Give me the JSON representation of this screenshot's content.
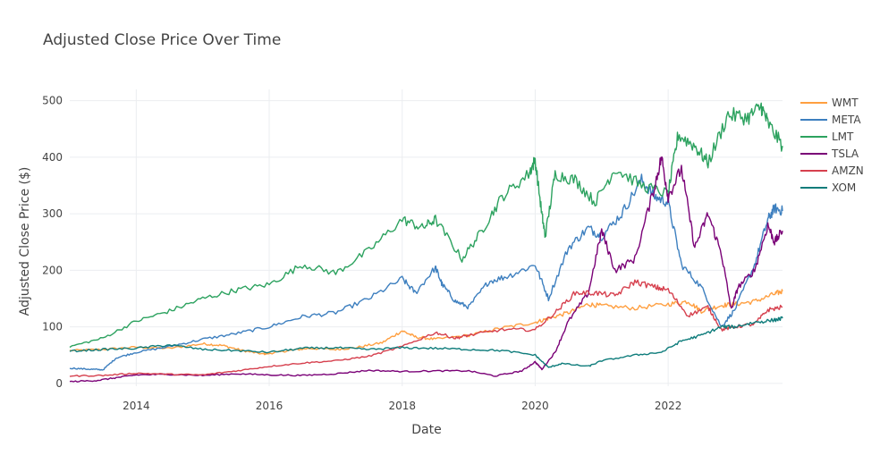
{
  "chart_data": {
    "type": "line",
    "title": "Adjusted Close Price Over Time",
    "xlabel": "Date",
    "ylabel": "Adjusted Close Price ($)",
    "xlim": [
      2013.0,
      2023.72
    ],
    "ylim": [
      -5,
      520
    ],
    "x_ticks": [
      2014,
      2016,
      2018,
      2020,
      2022
    ],
    "x_tick_labels": [
      "2014",
      "2016",
      "2018",
      "2020",
      "2022"
    ],
    "y_ticks": [
      0,
      100,
      200,
      300,
      400,
      500
    ],
    "y_tick_labels": [
      "0",
      "100",
      "200",
      "300",
      "400",
      "500"
    ],
    "grid": true,
    "legend_position": "top-right",
    "series": [
      {
        "name": "WMT",
        "color": "#ff9f40",
        "points": [
          [
            2013.0,
            58
          ],
          [
            2013.5,
            60
          ],
          [
            2014.0,
            64
          ],
          [
            2014.5,
            62
          ],
          [
            2015.0,
            70
          ],
          [
            2015.3,
            67
          ],
          [
            2015.6,
            58
          ],
          [
            2015.9,
            52
          ],
          [
            2016.0,
            53
          ],
          [
            2016.3,
            58
          ],
          [
            2016.6,
            62
          ],
          [
            2017.0,
            60
          ],
          [
            2017.3,
            63
          ],
          [
            2017.7,
            72
          ],
          [
            2018.0,
            93
          ],
          [
            2018.2,
            82
          ],
          [
            2018.5,
            78
          ],
          [
            2019.0,
            85
          ],
          [
            2019.5,
            98
          ],
          [
            2020.0,
            108
          ],
          [
            2020.2,
            115
          ],
          [
            2020.5,
            125
          ],
          [
            2020.8,
            140
          ],
          [
            2021.0,
            137
          ],
          [
            2021.5,
            133
          ],
          [
            2022.0,
            140
          ],
          [
            2022.3,
            145
          ],
          [
            2022.5,
            128
          ],
          [
            2022.8,
            138
          ],
          [
            2023.0,
            140
          ],
          [
            2023.3,
            145
          ],
          [
            2023.6,
            158
          ],
          [
            2023.72,
            163
          ]
        ]
      },
      {
        "name": "META",
        "color": "#3d7fbf",
        "points": [
          [
            2013.0,
            27
          ],
          [
            2013.3,
            25
          ],
          [
            2013.5,
            24
          ],
          [
            2013.7,
            45
          ],
          [
            2014.0,
            55
          ],
          [
            2014.5,
            65
          ],
          [
            2015.0,
            78
          ],
          [
            2015.5,
            88
          ],
          [
            2016.0,
            100
          ],
          [
            2016.5,
            118
          ],
          [
            2017.0,
            125
          ],
          [
            2017.5,
            150
          ],
          [
            2018.0,
            185
          ],
          [
            2018.2,
            160
          ],
          [
            2018.5,
            205
          ],
          [
            2018.6,
            175
          ],
          [
            2018.8,
            145
          ],
          [
            2019.0,
            135
          ],
          [
            2019.3,
            180
          ],
          [
            2019.6,
            190
          ],
          [
            2020.0,
            210
          ],
          [
            2020.2,
            150
          ],
          [
            2020.5,
            240
          ],
          [
            2020.8,
            275
          ],
          [
            2021.0,
            260
          ],
          [
            2021.3,
            300
          ],
          [
            2021.6,
            360
          ],
          [
            2021.8,
            330
          ],
          [
            2022.0,
            320
          ],
          [
            2022.2,
            210
          ],
          [
            2022.5,
            170
          ],
          [
            2022.8,
            100
          ],
          [
            2023.0,
            130
          ],
          [
            2023.3,
            210
          ],
          [
            2023.5,
            290
          ],
          [
            2023.6,
            310
          ],
          [
            2023.72,
            305
          ]
        ]
      },
      {
        "name": "LMT",
        "color": "#2ca25f",
        "points": [
          [
            2013.0,
            65
          ],
          [
            2013.5,
            80
          ],
          [
            2014.0,
            110
          ],
          [
            2014.5,
            128
          ],
          [
            2015.0,
            150
          ],
          [
            2015.5,
            165
          ],
          [
            2016.0,
            175
          ],
          [
            2016.5,
            210
          ],
          [
            2017.0,
            195
          ],
          [
            2017.5,
            235
          ],
          [
            2018.0,
            290
          ],
          [
            2018.3,
            275
          ],
          [
            2018.5,
            290
          ],
          [
            2018.9,
            220
          ],
          [
            2019.2,
            270
          ],
          [
            2019.5,
            330
          ],
          [
            2019.9,
            370
          ],
          [
            2020.0,
            395
          ],
          [
            2020.1,
            300
          ],
          [
            2020.15,
            260
          ],
          [
            2020.3,
            370
          ],
          [
            2020.6,
            360
          ],
          [
            2020.9,
            320
          ],
          [
            2021.2,
            380
          ],
          [
            2021.6,
            350
          ],
          [
            2022.0,
            335
          ],
          [
            2022.15,
            440
          ],
          [
            2022.4,
            420
          ],
          [
            2022.6,
            390
          ],
          [
            2022.9,
            475
          ],
          [
            2023.2,
            470
          ],
          [
            2023.4,
            490
          ],
          [
            2023.5,
            460
          ],
          [
            2023.72,
            420
          ]
        ]
      },
      {
        "name": "TSLA",
        "color": "#7a0177",
        "points": [
          [
            2013.0,
            3
          ],
          [
            2013.4,
            5
          ],
          [
            2013.7,
            10
          ],
          [
            2014.0,
            15
          ],
          [
            2014.5,
            16
          ],
          [
            2015.0,
            14
          ],
          [
            2015.5,
            17
          ],
          [
            2016.0,
            15
          ],
          [
            2016.5,
            14
          ],
          [
            2017.0,
            17
          ],
          [
            2017.5,
            23
          ],
          [
            2018.0,
            21
          ],
          [
            2018.5,
            22
          ],
          [
            2019.0,
            22
          ],
          [
            2019.4,
            13
          ],
          [
            2019.8,
            22
          ],
          [
            2020.0,
            38
          ],
          [
            2020.1,
            25
          ],
          [
            2020.3,
            55
          ],
          [
            2020.5,
            110
          ],
          [
            2020.8,
            160
          ],
          [
            2021.0,
            270
          ],
          [
            2021.2,
            200
          ],
          [
            2021.5,
            220
          ],
          [
            2021.8,
            350
          ],
          [
            2021.9,
            400
          ],
          [
            2022.0,
            330
          ],
          [
            2022.2,
            380
          ],
          [
            2022.4,
            240
          ],
          [
            2022.6,
            300
          ],
          [
            2022.8,
            230
          ],
          [
            2022.95,
            130
          ],
          [
            2023.05,
            170
          ],
          [
            2023.3,
            200
          ],
          [
            2023.5,
            280
          ],
          [
            2023.6,
            250
          ],
          [
            2023.72,
            270
          ]
        ]
      },
      {
        "name": "AMZN",
        "color": "#d6404e",
        "points": [
          [
            2013.0,
            13
          ],
          [
            2013.5,
            14
          ],
          [
            2014.0,
            18
          ],
          [
            2014.5,
            16
          ],
          [
            2015.0,
            15
          ],
          [
            2015.5,
            22
          ],
          [
            2016.0,
            30
          ],
          [
            2016.5,
            36
          ],
          [
            2017.0,
            40
          ],
          [
            2017.5,
            48
          ],
          [
            2018.0,
            65
          ],
          [
            2018.5,
            90
          ],
          [
            2018.8,
            80
          ],
          [
            2019.0,
            85
          ],
          [
            2019.5,
            95
          ],
          [
            2020.0,
            95
          ],
          [
            2020.3,
            125
          ],
          [
            2020.6,
            160
          ],
          [
            2020.9,
            160
          ],
          [
            2021.2,
            155
          ],
          [
            2021.5,
            180
          ],
          [
            2021.8,
            170
          ],
          [
            2022.0,
            165
          ],
          [
            2022.3,
            120
          ],
          [
            2022.6,
            135
          ],
          [
            2022.8,
            95
          ],
          [
            2023.0,
            100
          ],
          [
            2023.3,
            105
          ],
          [
            2023.5,
            130
          ],
          [
            2023.72,
            135
          ]
        ]
      },
      {
        "name": "XOM",
        "color": "#0e7c7b",
        "points": [
          [
            2013.0,
            57
          ],
          [
            2013.5,
            60
          ],
          [
            2014.0,
            62
          ],
          [
            2014.5,
            68
          ],
          [
            2015.0,
            60
          ],
          [
            2015.5,
            58
          ],
          [
            2016.0,
            55
          ],
          [
            2016.5,
            62
          ],
          [
            2017.0,
            63
          ],
          [
            2017.5,
            60
          ],
          [
            2018.0,
            63
          ],
          [
            2018.5,
            62
          ],
          [
            2019.0,
            60
          ],
          [
            2019.5,
            58
          ],
          [
            2020.0,
            50
          ],
          [
            2020.2,
            28
          ],
          [
            2020.4,
            35
          ],
          [
            2020.8,
            30
          ],
          [
            2021.0,
            40
          ],
          [
            2021.5,
            50
          ],
          [
            2021.9,
            55
          ],
          [
            2022.2,
            75
          ],
          [
            2022.5,
            85
          ],
          [
            2022.8,
            100
          ],
          [
            2023.0,
            100
          ],
          [
            2023.3,
            108
          ],
          [
            2023.6,
            112
          ],
          [
            2023.72,
            115
          ]
        ]
      }
    ]
  }
}
